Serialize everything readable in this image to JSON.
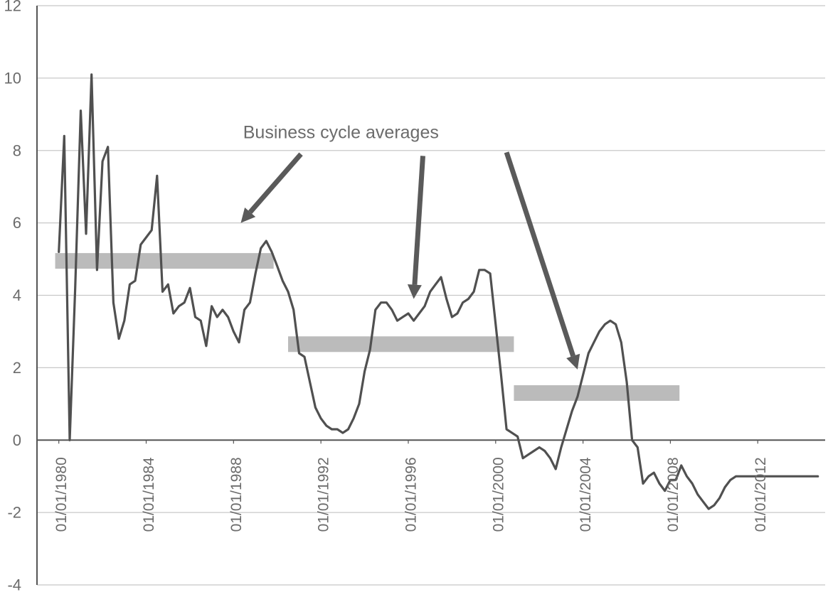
{
  "chart_data": {
    "type": "line",
    "title": "",
    "xlabel": "",
    "ylabel": "",
    "ylim": [
      -4,
      12
    ],
    "yticks": [
      -4,
      -2,
      0,
      2,
      4,
      6,
      8,
      10,
      12
    ],
    "ytick_labels": [
      "-4",
      "-2",
      "0",
      "2",
      "4",
      "6",
      "8",
      "10",
      "12"
    ],
    "xlim": [
      "1979-01-01",
      "2015-02-01"
    ],
    "xtick_labels": [
      "01/01/1980",
      "01/01/1984",
      "01/01/1988",
      "01/01/1992",
      "01/01/1996",
      "01/01/2000",
      "01/01/2004",
      "01/01/2008",
      "01/01/2012"
    ],
    "xticks": [
      "1980-01-01",
      "1984-01-01",
      "1988-01-01",
      "1992-01-01",
      "1996-01-01",
      "2000-01-01",
      "2004-01-01",
      "2008-01-01",
      "2012-01-01"
    ],
    "grid": true,
    "colors": {
      "line": "#505050",
      "bands": "#bbbbbb",
      "arrows": "#5a5a5a",
      "grid": "#c8c8c8",
      "axis": "#555555",
      "text": "#6b6b6b"
    },
    "series": [
      {
        "x": [
          "1980-01-01",
          "1980-04-01",
          "1980-07-01",
          "1980-10-01",
          "1981-01-01",
          "1981-04-01",
          "1981-07-01",
          "1981-10-01",
          "1982-01-01",
          "1982-04-01",
          "1982-07-01",
          "1982-10-01",
          "1983-01-01",
          "1983-04-01",
          "1983-07-01",
          "1983-10-01",
          "1984-01-01",
          "1984-04-01",
          "1984-07-01",
          "1984-10-01",
          "1985-01-01",
          "1985-04-01",
          "1985-07-01",
          "1985-10-01",
          "1986-01-01",
          "1986-04-01",
          "1986-07-01",
          "1986-10-01",
          "1987-01-01",
          "1987-04-01",
          "1987-07-01",
          "1987-10-01",
          "1988-01-01",
          "1988-04-01",
          "1988-07-01",
          "1988-10-01",
          "1989-01-01",
          "1989-04-01",
          "1989-07-01",
          "1989-10-01",
          "1990-01-01",
          "1990-04-01",
          "1990-07-01",
          "1990-10-01",
          "1991-01-01",
          "1991-04-01",
          "1991-07-01",
          "1991-10-01",
          "1992-01-01",
          "1992-04-01",
          "1992-07-01",
          "1992-10-01",
          "1993-01-01",
          "1993-04-01",
          "1993-07-01",
          "1993-10-01",
          "1994-01-01",
          "1994-04-01",
          "1994-07-01",
          "1994-10-01",
          "1995-01-01",
          "1995-04-01",
          "1995-07-01",
          "1995-10-01",
          "1996-01-01",
          "1996-04-01",
          "1996-07-01",
          "1996-10-01",
          "1997-01-01",
          "1997-04-01",
          "1997-07-01",
          "1997-10-01",
          "1998-01-01",
          "1998-04-01",
          "1998-07-01",
          "1998-10-01",
          "1999-01-01",
          "1999-04-01",
          "1999-07-01",
          "1999-10-01",
          "2000-01-01",
          "2000-04-01",
          "2000-07-01",
          "2000-10-01",
          "2001-01-01",
          "2001-04-01",
          "2001-07-01",
          "2001-10-01",
          "2002-01-01",
          "2002-04-01",
          "2002-07-01",
          "2002-10-01",
          "2003-01-01",
          "2003-04-01",
          "2003-07-01",
          "2003-10-01",
          "2004-01-01",
          "2004-04-01",
          "2004-07-01",
          "2004-10-01",
          "2005-01-01",
          "2005-04-01",
          "2005-07-01",
          "2005-10-01",
          "2006-01-01",
          "2006-04-01",
          "2006-07-01",
          "2006-10-01",
          "2007-01-01",
          "2007-04-01",
          "2007-07-01",
          "2007-10-01",
          "2008-01-01",
          "2008-04-01",
          "2008-07-01",
          "2008-10-01",
          "2009-01-01",
          "2009-04-01",
          "2009-07-01",
          "2009-10-01",
          "2010-01-01",
          "2010-04-01",
          "2010-07-01",
          "2010-10-01",
          "2011-01-01",
          "2011-04-01",
          "2011-07-01",
          "2011-10-01",
          "2012-01-01",
          "2012-04-01",
          "2012-07-01",
          "2012-10-01",
          "2013-01-01",
          "2013-04-01",
          "2013-07-01",
          "2013-10-01",
          "2014-01-01",
          "2014-04-01",
          "2014-07-01",
          "2014-10-01"
        ],
        "values": [
          5.2,
          8.4,
          0.0,
          4.2,
          9.1,
          5.7,
          10.1,
          4.7,
          7.7,
          8.1,
          3.8,
          2.8,
          3.3,
          4.3,
          4.4,
          5.4,
          5.6,
          5.8,
          7.3,
          4.1,
          4.3,
          3.5,
          3.7,
          3.8,
          4.2,
          3.4,
          3.3,
          2.6,
          3.7,
          3.4,
          3.6,
          3.4,
          3.0,
          2.7,
          3.6,
          3.8,
          4.6,
          5.3,
          5.5,
          5.2,
          4.8,
          4.4,
          4.1,
          3.6,
          2.4,
          2.3,
          1.6,
          0.9,
          0.6,
          0.4,
          0.3,
          0.3,
          0.2,
          0.3,
          0.6,
          1.0,
          1.9,
          2.5,
          3.6,
          3.8,
          3.8,
          3.6,
          3.3,
          3.4,
          3.5,
          3.3,
          3.5,
          3.7,
          4.1,
          4.3,
          4.5,
          3.9,
          3.4,
          3.5,
          3.8,
          3.9,
          4.1,
          4.7,
          4.7,
          4.6,
          3.2,
          1.8,
          0.3,
          0.2,
          0.1,
          -0.5,
          -0.4,
          -0.3,
          -0.2,
          -0.3,
          -0.5,
          -0.8,
          -0.2,
          0.3,
          0.8,
          1.2,
          1.8,
          2.4,
          2.7,
          3.0,
          3.2,
          3.3,
          3.2,
          2.7,
          1.6,
          0.0,
          -0.2,
          -1.2,
          -1.0,
          -0.9,
          -1.2,
          -1.4,
          -1.1,
          -1.1,
          -0.7,
          -1.0,
          -1.2,
          -1.5,
          -1.7,
          -1.9,
          -1.8,
          -1.6,
          -1.3,
          -1.1,
          -1.0,
          -1.0,
          -1.0,
          -1.0,
          -1.0,
          -1.0,
          -1.0,
          -1.0,
          -1.0,
          -1.0,
          -1.0,
          -1.0,
          -1.0,
          -1.0,
          -1.0,
          -1.0
        ]
      }
    ],
    "bands": [
      {
        "x_start": "1979-11-01",
        "x_end": "1989-11-01",
        "y": 4.95
      },
      {
        "x_start": "1990-07-01",
        "x_end": "2000-11-01",
        "y": 2.65
      },
      {
        "x_start": "2000-11-01",
        "x_end": "2008-06-01",
        "y": 1.3
      }
    ],
    "annotations": [
      {
        "text": "Business cycle averages",
        "x": "1992-12-01",
        "y": 8.5
      }
    ],
    "arrows": [
      {
        "from_x": "1991-02-01",
        "from_y": 7.9,
        "to_x": "1988-05-01",
        "to_y": 6.0
      },
      {
        "from_x": "1996-09-01",
        "from_y": 7.85,
        "to_x": "1996-04-01",
        "to_y": 3.9
      },
      {
        "from_x": "2000-07-01",
        "from_y": 7.95,
        "to_x": "2003-10-01",
        "to_y": 1.95
      }
    ]
  }
}
